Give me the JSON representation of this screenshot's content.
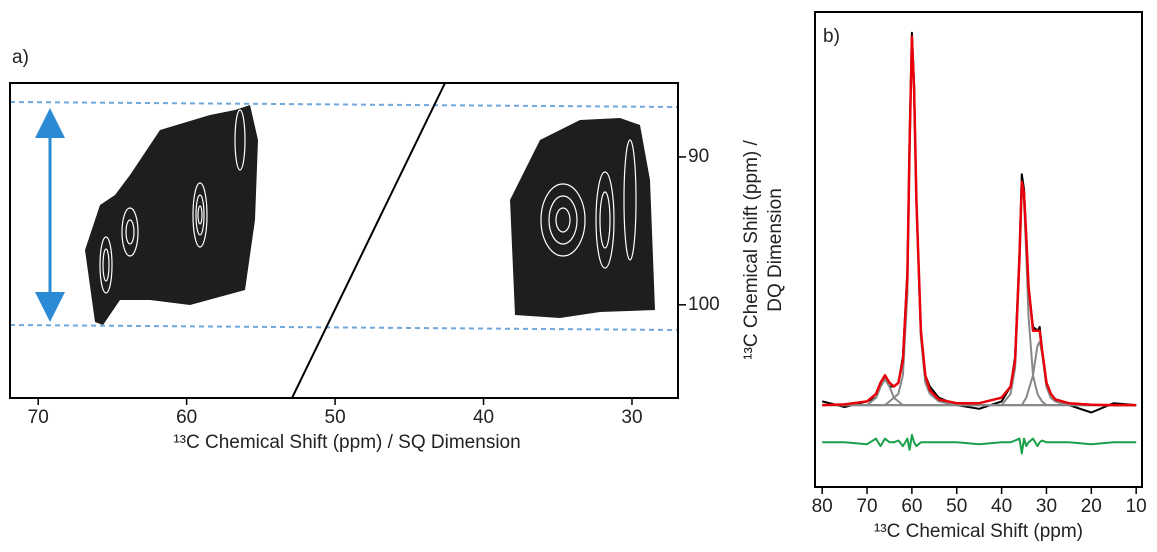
{
  "chart_data": [
    {
      "type": "contour",
      "label": "a)",
      "x_label": "¹³C Chemical Shift (ppm) / SQ Dimension",
      "y_label": [
        "¹³C Chemical Shift (ppm) /",
        "DQ Dimension"
      ],
      "xlim": [
        71.9,
        26.9
      ],
      "xticks": [
        70,
        60,
        50,
        40,
        30
      ],
      "ylim": [
        106.3,
        85
      ],
      "yticks": [
        90,
        100
      ]
    },
    {
      "type": "line",
      "label": "b)",
      "x_label": "¹³C Chemical Shift (ppm)",
      "xlim": [
        81.6,
        8.7
      ],
      "xticks": [
        80,
        70,
        60,
        50,
        40,
        30,
        20,
        10
      ],
      "ylim": [
        -0.22,
        1.056
      ],
      "x": [
        80,
        75,
        70,
        68,
        67,
        66,
        65,
        64,
        63,
        62,
        61,
        60.5,
        60,
        59.5,
        59,
        58,
        57,
        56,
        54,
        50,
        45,
        40,
        38,
        37,
        36,
        35.5,
        35,
        34.5,
        34,
        33,
        32,
        31.5,
        31,
        30,
        29,
        28,
        25,
        20,
        15,
        10
      ],
      "series": [
        {
          "color": "#000000",
          "values": [
            0.01,
            -0.005,
            0.01,
            0.02,
            0.05,
            0.07,
            0.05,
            0.05,
            0.06,
            0.13,
            0.36,
            0.72,
            1.0,
            0.86,
            0.55,
            0.19,
            0.08,
            0.05,
            0.02,
            0.0,
            -0.01,
            0.01,
            0.05,
            0.13,
            0.41,
            0.62,
            0.58,
            0.45,
            0.32,
            0.21,
            0.2,
            0.21,
            0.15,
            0.05,
            0.02,
            0.01,
            0.0,
            -0.02,
            0.005,
            0.0
          ]
        },
        {
          "color": "#888888",
          "values": [
            0,
            0,
            0,
            0.02,
            0.05,
            0.07,
            0.05,
            0.02,
            0.01,
            0,
            0,
            0,
            0,
            0,
            0,
            0,
            0,
            0,
            0,
            0,
            0,
            0,
            0,
            0,
            0,
            0,
            0,
            0,
            0,
            0,
            0,
            0,
            0,
            0,
            0,
            0,
            0,
            0,
            0,
            0
          ]
        },
        {
          "color": "#888888",
          "values": [
            0,
            0,
            0,
            0,
            0,
            0,
            0.01,
            0.02,
            0.03,
            0.08,
            0.3,
            0.68,
            0.99,
            0.84,
            0.54,
            0.18,
            0.06,
            0.03,
            0.01,
            0,
            0,
            0,
            0,
            0,
            0,
            0,
            0,
            0,
            0,
            0,
            0,
            0,
            0,
            0,
            0,
            0,
            0,
            0,
            0,
            0
          ]
        },
        {
          "color": "#888888",
          "values": [
            0,
            0,
            0,
            0,
            0,
            0,
            0,
            0,
            0,
            0,
            0,
            0,
            0,
            0,
            0,
            0,
            0,
            0,
            0,
            0,
            0,
            0,
            0.03,
            0.1,
            0.38,
            0.58,
            0.55,
            0.4,
            0.24,
            0.08,
            0.03,
            0.02,
            0.01,
            0,
            0,
            0,
            0,
            0,
            0,
            0
          ]
        },
        {
          "color": "#888888",
          "values": [
            0,
            0,
            0,
            0,
            0,
            0,
            0,
            0,
            0,
            0,
            0,
            0,
            0,
            0,
            0,
            0,
            0,
            0,
            0,
            0,
            0,
            0,
            0,
            0,
            0,
            0,
            0.01,
            0.02,
            0.04,
            0.08,
            0.16,
            0.17,
            0.14,
            0.05,
            0.02,
            0.01,
            0,
            0,
            0,
            0
          ]
        },
        {
          "color": "#e8000b",
          "values": [
            0,
            0.002,
            0.01,
            0.03,
            0.06,
            0.08,
            0.06,
            0.05,
            0.06,
            0.12,
            0.35,
            0.7,
            0.99,
            0.85,
            0.55,
            0.2,
            0.08,
            0.04,
            0.015,
            0.005,
            0.005,
            0.02,
            0.05,
            0.12,
            0.4,
            0.6,
            0.57,
            0.45,
            0.32,
            0.2,
            0.2,
            0.2,
            0.15,
            0.06,
            0.03,
            0.015,
            0.005,
            0.001,
            0,
            0
          ]
        },
        {
          "color": "#1aa04a",
          "values": [
            -0.1,
            -0.1,
            -0.105,
            -0.09,
            -0.11,
            -0.09,
            -0.1,
            -0.1,
            -0.095,
            -0.11,
            -0.09,
            -0.12,
            -0.08,
            -0.1,
            -0.11,
            -0.1,
            -0.1,
            -0.1,
            -0.1,
            -0.1,
            -0.105,
            -0.1,
            -0.1,
            -0.095,
            -0.09,
            -0.13,
            -0.09,
            -0.11,
            -0.1,
            -0.09,
            -0.11,
            -0.1,
            -0.095,
            -0.1,
            -0.1,
            -0.1,
            -0.1,
            -0.105,
            -0.1,
            -0.1
          ]
        }
      ]
    }
  ]
}
